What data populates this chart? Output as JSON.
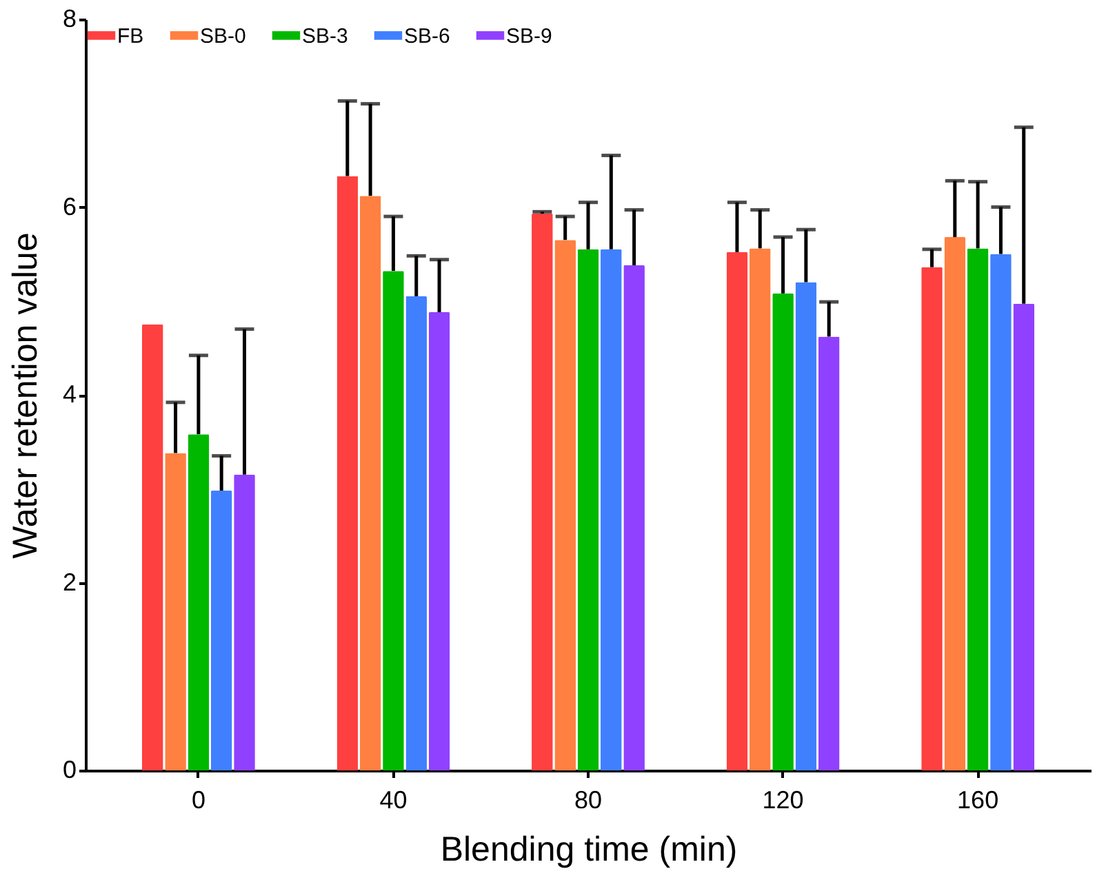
{
  "chart_data": {
    "type": "bar",
    "xlabel": "Blending time (min)",
    "ylabel": "Water retention value",
    "categories": [
      "0",
      "40",
      "80",
      "120",
      "160"
    ],
    "series": [
      {
        "name": "FB",
        "color": "#ff4040",
        "values": [
          4.75,
          6.33,
          5.93,
          5.52,
          5.36
        ],
        "errors": [
          null,
          [
            6.33,
            7.13
          ],
          [
            5.93,
            5.95
          ],
          [
            5.52,
            6.05
          ],
          [
            5.36,
            5.55
          ]
        ]
      },
      {
        "name": "SB-0",
        "color": "#ff8040",
        "values": [
          3.38,
          6.12,
          5.65,
          5.56,
          5.68
        ],
        "errors": [
          [
            3.38,
            3.92
          ],
          [
            6.12,
            7.1
          ],
          [
            5.65,
            5.9
          ],
          [
            5.56,
            5.97
          ],
          [
            5.68,
            6.28
          ]
        ]
      },
      {
        "name": "SB-3",
        "color": "#00b800",
        "values": [
          3.58,
          5.32,
          5.55,
          5.08,
          5.56
        ],
        "errors": [
          [
            3.58,
            4.42
          ],
          [
            5.32,
            5.9
          ],
          [
            5.55,
            6.05
          ],
          [
            5.08,
            5.68
          ],
          [
            5.56,
            6.27
          ]
        ]
      },
      {
        "name": "SB-6",
        "color": "#4080ff",
        "values": [
          2.98,
          5.05,
          5.55,
          5.2,
          5.5
        ],
        "errors": [
          [
            2.98,
            3.35
          ],
          [
            5.05,
            5.48
          ],
          [
            5.55,
            6.55
          ],
          [
            5.2,
            5.76
          ],
          [
            5.5,
            6.0
          ]
        ]
      },
      {
        "name": "SB-9",
        "color": "#9040ff",
        "values": [
          3.15,
          4.88,
          5.38,
          4.62,
          4.97
        ],
        "errors": [
          [
            3.15,
            4.7
          ],
          [
            4.88,
            5.44
          ],
          [
            5.38,
            5.97
          ],
          [
            4.62,
            4.99
          ],
          [
            4.97,
            6.85
          ]
        ]
      }
    ],
    "ylim": [
      0,
      8
    ],
    "yticks": [
      0,
      2,
      4,
      6,
      8
    ],
    "grid": false,
    "legend": "top left"
  }
}
